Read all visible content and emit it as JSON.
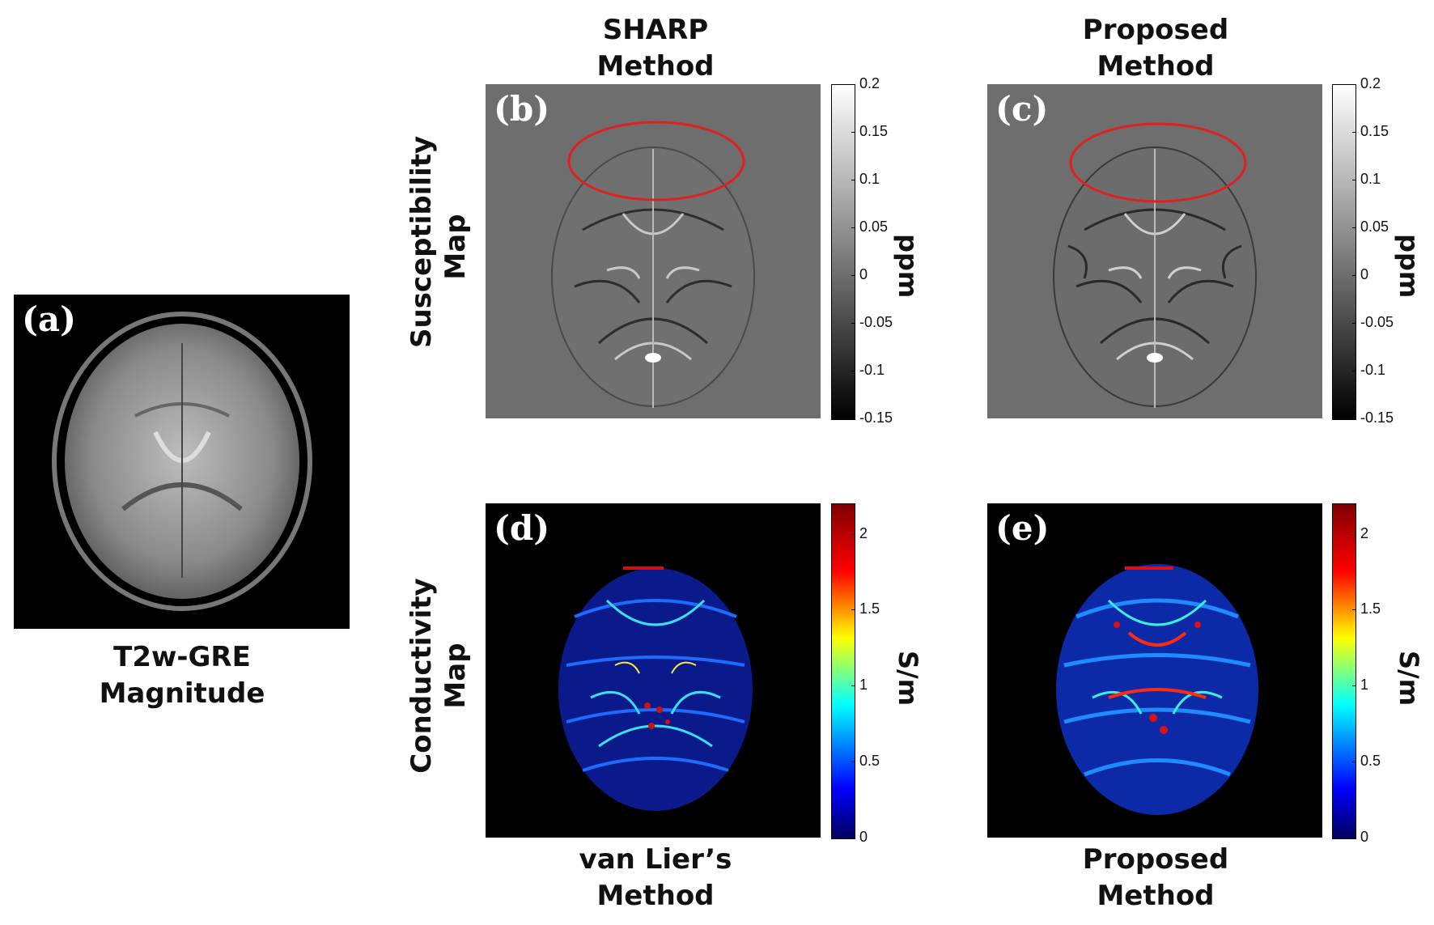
{
  "panels": {
    "a": {
      "label": "(a)",
      "caption_line1": "T2w-GRE",
      "caption_line2": "Magnitude"
    },
    "b": {
      "label": "(b)"
    },
    "c": {
      "label": "(c)"
    },
    "d": {
      "label": "(d)"
    },
    "e": {
      "label": "(e)"
    }
  },
  "column_headers": {
    "top_left": {
      "line1": "SHARP",
      "line2": "Method"
    },
    "top_right": {
      "line1": "Proposed",
      "line2": "Method"
    },
    "bottom_left": {
      "line1": "van Lier’s",
      "line2": "Method"
    },
    "bottom_right": {
      "line1": "Proposed",
      "line2": "Method"
    }
  },
  "row_labels": {
    "top": {
      "line1": "Susceptibility",
      "line2": "Map"
    },
    "bottom": {
      "line1": "Conductivity",
      "line2": "Map"
    }
  },
  "colorbars": {
    "susceptibility": {
      "unit": "ppm",
      "range": [
        -0.15,
        0.2
      ],
      "ticks": [
        "0.2",
        "0.15",
        "0.1",
        "0.05",
        "0",
        "-0.05",
        "-0.1",
        "-0.15"
      ],
      "colormap": "gray"
    },
    "conductivity": {
      "unit": "S/m",
      "range": [
        0,
        2.2
      ],
      "ticks": [
        "2",
        "1.5",
        "1",
        "0.5",
        "0"
      ],
      "colormap": "jet"
    }
  },
  "annotations": {
    "ellipse_color": "#e02020"
  },
  "colors": {
    "gray_background": "#6e6e6e",
    "black_background": "#000000"
  }
}
